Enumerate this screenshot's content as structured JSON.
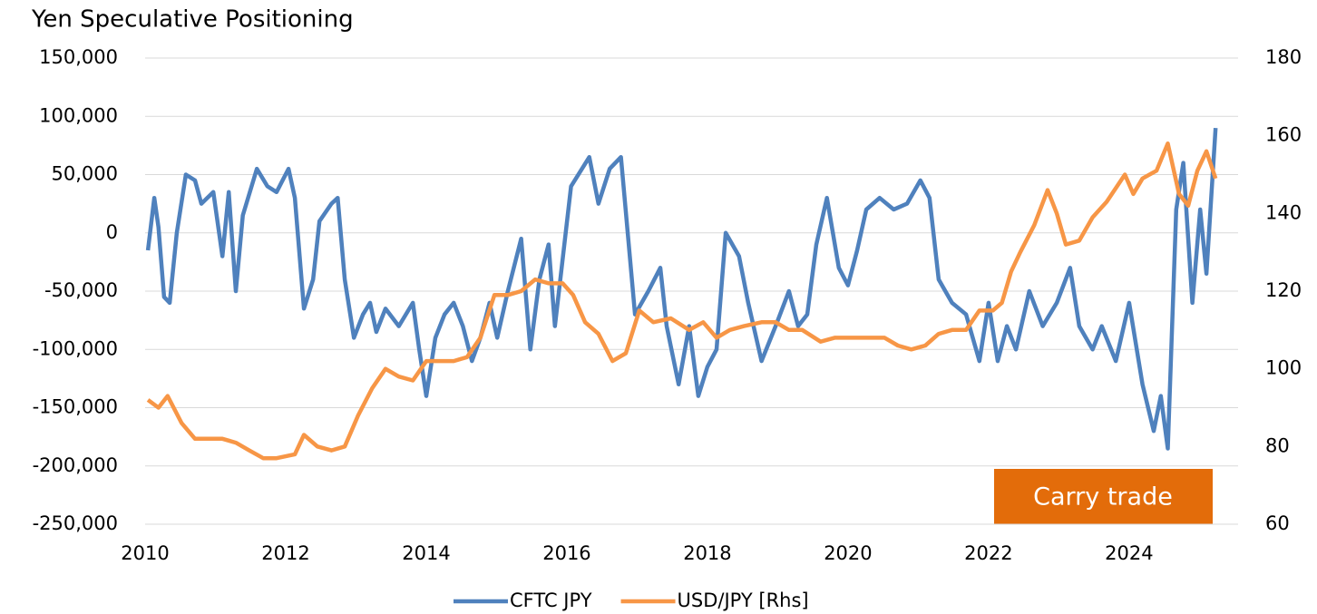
{
  "chart_data": {
    "type": "line",
    "title": "Yen Speculative Positioning",
    "annotation": "Carry trade",
    "annotation_color": "#e36c0a",
    "xlim": [
      2010,
      2025.55
    ],
    "xticks": [
      2010,
      2012,
      2014,
      2016,
      2018,
      2020,
      2022,
      2024
    ],
    "ylim": [
      -250000,
      150000
    ],
    "yticks": [
      {
        "value": -250000,
        "label": "-250,000"
      },
      {
        "value": -200000,
        "label": "-200,000"
      },
      {
        "value": -150000,
        "label": "-150,000"
      },
      {
        "value": -100000,
        "label": "-100,000"
      },
      {
        "value": -50000,
        "label": "-50,000"
      },
      0,
      {
        "value": 50000,
        "label": "50,000"
      },
      {
        "value": 100000,
        "label": "100,000"
      },
      {
        "value": 150000,
        "label": "150,000"
      }
    ],
    "y2lim": [
      60,
      180
    ],
    "y2ticks": [
      60,
      80,
      100,
      120,
      140,
      160,
      180
    ],
    "grid": true,
    "legend": "bottom",
    "series": [
      {
        "name": "CFTC JPY",
        "color": "#4f81bd",
        "x": [
          2010.04,
          2010.13,
          2010.19,
          2010.27,
          2010.35,
          2010.45,
          2010.58,
          2010.71,
          2010.8,
          2010.97,
          2011.1,
          2011.19,
          2011.29,
          2011.39,
          2011.59,
          2011.74,
          2011.87,
          2012.04,
          2012.13,
          2012.26,
          2012.39,
          2012.48,
          2012.65,
          2012.74,
          2012.84,
          2012.97,
          2013.1,
          2013.2,
          2013.29,
          2013.42,
          2013.61,
          2013.81,
          2013.9,
          2014.0,
          2014.13,
          2014.26,
          2014.39,
          2014.52,
          2014.65,
          2014.77,
          2014.9,
          2015.01,
          2015.16,
          2015.35,
          2015.48,
          2015.61,
          2015.74,
          2015.83,
          2016.06,
          2016.32,
          2016.45,
          2016.61,
          2016.77,
          2016.97,
          2017.16,
          2017.33,
          2017.42,
          2017.59,
          2017.74,
          2017.87,
          2018.0,
          2018.13,
          2018.26,
          2018.45,
          2018.58,
          2018.77,
          2018.97,
          2019.16,
          2019.29,
          2019.42,
          2019.55,
          2019.7,
          2019.87,
          2020.0,
          2020.13,
          2020.26,
          2020.45,
          2020.65,
          2020.84,
          2021.03,
          2021.16,
          2021.29,
          2021.48,
          2021.68,
          2021.87,
          2022.0,
          2022.13,
          2022.26,
          2022.39,
          2022.58,
          2022.77,
          2022.97,
          2023.16,
          2023.29,
          2023.48,
          2023.61,
          2023.81,
          2024.0,
          2024.19,
          2024.35,
          2024.45,
          2024.55,
          2024.67,
          2024.77,
          2024.9,
          2025.01,
          2025.1,
          2025.23
        ],
        "values": [
          -15000,
          30000,
          5000,
          -55000,
          -60000,
          0,
          50000,
          45000,
          25000,
          35000,
          -20000,
          35000,
          -50000,
          15000,
          55000,
          40000,
          35000,
          55000,
          30000,
          -65000,
          -40000,
          10000,
          25000,
          30000,
          -40000,
          -90000,
          -70000,
          -60000,
          -85000,
          -65000,
          -80000,
          -60000,
          -100000,
          -140000,
          -90000,
          -70000,
          -60000,
          -80000,
          -110000,
          -90000,
          -60000,
          -90000,
          -50000,
          -5000,
          -100000,
          -40000,
          -10000,
          -80000,
          40000,
          65000,
          25000,
          55000,
          65000,
          -70000,
          -50000,
          -30000,
          -80000,
          -130000,
          -80000,
          -140000,
          -115000,
          -100000,
          0,
          -20000,
          -60000,
          -110000,
          -80000,
          -50000,
          -80000,
          -70000,
          -10000,
          30000,
          -30000,
          -45000,
          -15000,
          20000,
          30000,
          20000,
          25000,
          45000,
          30000,
          -40000,
          -60000,
          -70000,
          -110000,
          -60000,
          -110000,
          -80000,
          -100000,
          -50000,
          -80000,
          -60000,
          -30000,
          -80000,
          -100000,
          -80000,
          -110000,
          -60000,
          -130000,
          -170000,
          -140000,
          -185000,
          20000,
          60000,
          -60000,
          20000,
          -35000,
          90000
        ]
      },
      {
        "name": "USD/JPY [Rhs]",
        "color": "#f79646",
        "axis": "y2",
        "x": [
          2010.04,
          2010.19,
          2010.32,
          2010.52,
          2010.71,
          2010.9,
          2011.1,
          2011.29,
          2011.48,
          2011.68,
          2011.87,
          2012.13,
          2012.26,
          2012.45,
          2012.65,
          2012.84,
          2013.03,
          2013.23,
          2013.42,
          2013.61,
          2013.81,
          2014.0,
          2014.19,
          2014.39,
          2014.58,
          2014.77,
          2014.97,
          2015.16,
          2015.35,
          2015.55,
          2015.74,
          2015.94,
          2016.09,
          2016.26,
          2016.45,
          2016.65,
          2016.84,
          2017.03,
          2017.23,
          2017.48,
          2017.74,
          2017.94,
          2018.13,
          2018.32,
          2018.52,
          2018.77,
          2018.97,
          2019.16,
          2019.35,
          2019.61,
          2019.81,
          2020.06,
          2020.32,
          2020.52,
          2020.71,
          2020.9,
          2021.1,
          2021.29,
          2021.48,
          2021.68,
          2021.87,
          2022.06,
          2022.19,
          2022.32,
          2022.45,
          2022.65,
          2022.84,
          2022.97,
          2023.1,
          2023.29,
          2023.48,
          2023.68,
          2023.94,
          2024.06,
          2024.19,
          2024.39,
          2024.55,
          2024.71,
          2024.84,
          2024.97,
          2025.1,
          2025.23
        ],
        "values": [
          92,
          90,
          93,
          86,
          82,
          82,
          82,
          81,
          79,
          77,
          77,
          78,
          83,
          80,
          79,
          80,
          88,
          95,
          100,
          98,
          97,
          102,
          102,
          102,
          103,
          108,
          119,
          119,
          120,
          123,
          122,
          122,
          119,
          112,
          109,
          102,
          104,
          115,
          112,
          113,
          110,
          112,
          108,
          110,
          111,
          112,
          112,
          110,
          110,
          107,
          108,
          108,
          108,
          108,
          106,
          105,
          106,
          109,
          110,
          110,
          115,
          115,
          117,
          125,
          130,
          137,
          146,
          140,
          132,
          133,
          139,
          143,
          150,
          145,
          149,
          151,
          158,
          145,
          142,
          151,
          156,
          149
        ]
      }
    ]
  }
}
